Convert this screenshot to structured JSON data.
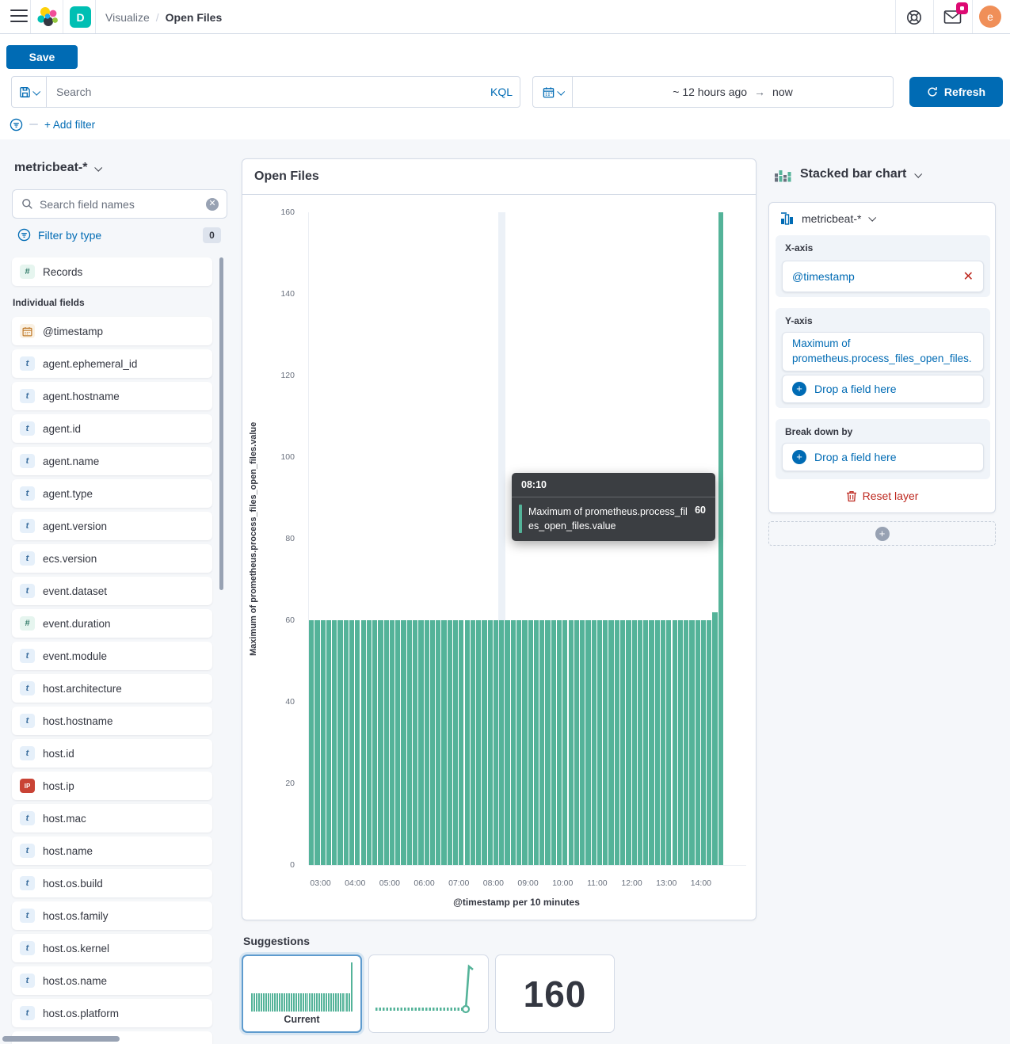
{
  "header": {
    "breadcrumb_section": "Visualize",
    "breadcrumb_separator": "/",
    "breadcrumb_page": "Open Files",
    "space_badge": "D",
    "avatar_initial": "e"
  },
  "toolbar": {
    "save_label": "Save",
    "query": {
      "placeholder": "Search",
      "language": "KQL"
    },
    "time_range": {
      "from": "~ 12 hours ago",
      "arrow": "→",
      "to": "now"
    },
    "refresh_label": "Refresh",
    "add_filter_label": "+ Add filter"
  },
  "sidebar": {
    "index_pattern": "metricbeat-*",
    "field_search_placeholder": "Search field names",
    "filter_by_type_label": "Filter by type",
    "filter_count": "0",
    "records_label": "Records",
    "individual_fields_label": "Individual fields",
    "fields": [
      {
        "name": "@timestamp",
        "type": "date"
      },
      {
        "name": "agent.ephemeral_id",
        "type": "string"
      },
      {
        "name": "agent.hostname",
        "type": "string"
      },
      {
        "name": "agent.id",
        "type": "string"
      },
      {
        "name": "agent.name",
        "type": "string"
      },
      {
        "name": "agent.type",
        "type": "string"
      },
      {
        "name": "agent.version",
        "type": "string"
      },
      {
        "name": "ecs.version",
        "type": "string"
      },
      {
        "name": "event.dataset",
        "type": "string"
      },
      {
        "name": "event.duration",
        "type": "number"
      },
      {
        "name": "event.module",
        "type": "string"
      },
      {
        "name": "host.architecture",
        "type": "string"
      },
      {
        "name": "host.hostname",
        "type": "string"
      },
      {
        "name": "host.id",
        "type": "string"
      },
      {
        "name": "host.ip",
        "type": "ip"
      },
      {
        "name": "host.mac",
        "type": "string"
      },
      {
        "name": "host.name",
        "type": "string"
      },
      {
        "name": "host.os.build",
        "type": "string"
      },
      {
        "name": "host.os.family",
        "type": "string"
      },
      {
        "name": "host.os.kernel",
        "type": "string"
      },
      {
        "name": "host.os.name",
        "type": "string"
      },
      {
        "name": "host.os.platform",
        "type": "string"
      }
    ]
  },
  "chart_panel": {
    "title": "Open Files",
    "tooltip": {
      "time": "08:10",
      "series_label": "Maximum of prometheus.process_files_open_files.value",
      "value": "60"
    }
  },
  "chart_data": {
    "type": "bar",
    "title": "Open Files",
    "xlabel": "@timestamp per 10 minutes",
    "ylabel": "Maximum of prometheus.process_files_open_files.value",
    "ylim": [
      0,
      160
    ],
    "y_ticks": [
      0,
      20,
      40,
      60,
      80,
      100,
      120,
      140,
      160
    ],
    "x_tick_labels": [
      "03:00",
      "04:00",
      "05:00",
      "06:00",
      "07:00",
      "08:00",
      "09:00",
      "10:00",
      "11:00",
      "12:00",
      "13:00",
      "14:00"
    ],
    "x_start": "02:40",
    "x_interval_minutes": 10,
    "bar_color": "#54B399",
    "highlight_index": 33,
    "legend": "off",
    "values": [
      60,
      60,
      60,
      60,
      60,
      60,
      60,
      60,
      60,
      60,
      60,
      60,
      60,
      60,
      60,
      60,
      60,
      60,
      60,
      60,
      60,
      60,
      60,
      60,
      60,
      60,
      60,
      60,
      60,
      60,
      60,
      60,
      60,
      60,
      60,
      60,
      60,
      60,
      60,
      60,
      60,
      60,
      60,
      60,
      60,
      60,
      60,
      60,
      60,
      60,
      60,
      60,
      60,
      60,
      60,
      60,
      60,
      60,
      60,
      60,
      60,
      60,
      60,
      60,
      60,
      60,
      60,
      60,
      60,
      60,
      62,
      160
    ]
  },
  "config_panel": {
    "chart_type_label": "Stacked bar chart",
    "layer": {
      "index_pattern": "metricbeat-*",
      "x_axis_label": "X-axis",
      "x_field": "@timestamp",
      "y_axis_label": "Y-axis",
      "y_field": "Maximum of prometheus.process_files_open_files.",
      "y_drop_label": "Drop a field here",
      "break_down_label": "Break down by",
      "break_down_drop_label": "Drop a field here",
      "reset_layer_label": "Reset layer"
    }
  },
  "suggestions": {
    "title": "Suggestions",
    "current_label": "Current",
    "metric_value": "160"
  },
  "colors": {
    "primary": "#006BB4",
    "bar": "#54B399",
    "accent_pink": "#DD0A73",
    "space_teal": "#00BFB3",
    "avatar_orange": "#F08F58",
    "danger": "#BD271E"
  }
}
